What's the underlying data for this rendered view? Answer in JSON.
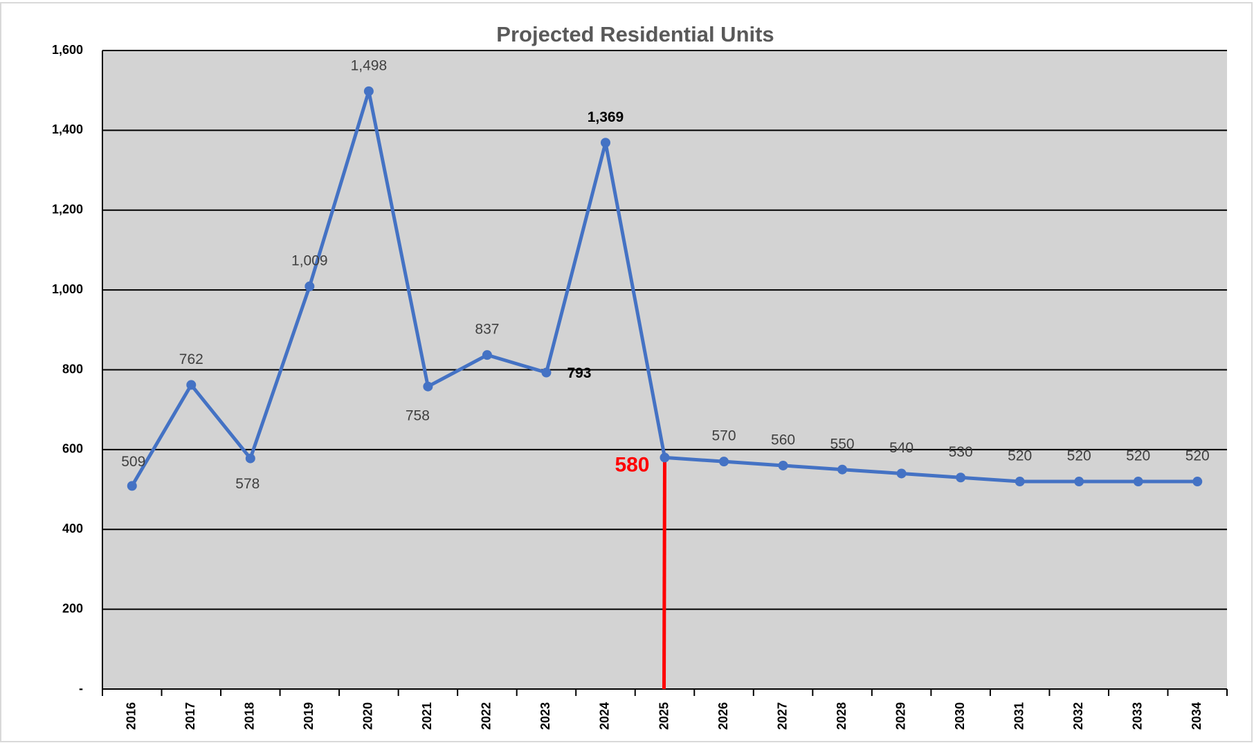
{
  "chart_data": {
    "type": "line",
    "title": "Projected Residential Units",
    "categories": [
      "2016",
      "2017",
      "2018",
      "2019",
      "2020",
      "2021",
      "2022",
      "2023",
      "2024",
      "2025",
      "2026",
      "2027",
      "2028",
      "2029",
      "2030",
      "2031",
      "2032",
      "2033",
      "2034"
    ],
    "series": [
      {
        "name": "Projected Residential Units",
        "color": "#4472c4",
        "values": [
          509,
          762,
          578,
          1009,
          1498,
          758,
          837,
          793,
          1369,
          580,
          570,
          560,
          550,
          540,
          530,
          520,
          520,
          520,
          520
        ],
        "value_labels": [
          "509",
          "762",
          "578",
          "1,009",
          "1,498",
          "758",
          "837",
          "793",
          "1,369",
          "580",
          "570",
          "560",
          "550",
          "540",
          "530",
          "520",
          "520",
          "520",
          "520"
        ]
      }
    ],
    "ylim": [
      0,
      1600
    ],
    "yticks": [
      {
        "value": 0,
        "label": "-"
      },
      200,
      400,
      600,
      800,
      {
        "value": 1000,
        "label": "1,000"
      },
      {
        "value": 1200,
        "label": "1,200"
      },
      {
        "value": 1400,
        "label": "1,400"
      },
      {
        "value": 1600,
        "label": "1,600"
      }
    ],
    "grid": true,
    "highlight": "2025",
    "highlight_color": "#ff0000"
  }
}
